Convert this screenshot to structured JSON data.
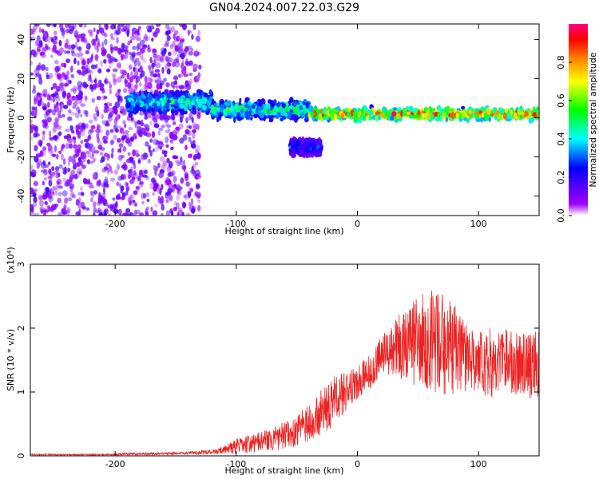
{
  "title": "GN04.2024.007.22.03.G29",
  "chart_data": [
    {
      "type": "heatmap",
      "name": "spectrogram",
      "xlabel": "Height of straight line (km)",
      "ylabel": "Frequency (Hz)",
      "xlim": [
        -270,
        150
      ],
      "ylim": [
        -50,
        48
      ],
      "xticks": [
        -200,
        -100,
        0,
        100
      ],
      "yticks": [
        -40,
        -20,
        0,
        20,
        40
      ],
      "colorbar": {
        "label": "Normalized spectral amplitude",
        "range": [
          0,
          1
        ],
        "ticks": [
          0.0,
          0.2,
          0.4,
          0.6,
          0.8
        ],
        "colors": [
          "#ffffff",
          "#a000ff",
          "#0000ff",
          "#00ffff",
          "#00ff00",
          "#ffff00",
          "#ff8000",
          "#ff0000",
          "#ff0080"
        ]
      },
      "features": [
        {
          "x_range": [
            -270,
            -130
          ],
          "y_range": [
            -50,
            48
          ],
          "amplitude": 0.12
        },
        {
          "x_range": [
            -190,
            -120
          ],
          "center": 8,
          "width": 14,
          "amplitude": 0.45
        },
        {
          "x_range": [
            -120,
            -40
          ],
          "center": 4,
          "width": 12,
          "amplitude": 0.5
        },
        {
          "x_range": [
            -40,
            150
          ],
          "center": 2,
          "width": 8,
          "amplitude": 0.85
        },
        {
          "x_range": [
            -55,
            -30
          ],
          "center": -15,
          "width": 10,
          "amplitude": 0.3
        }
      ]
    },
    {
      "type": "line",
      "name": "snr",
      "xlabel": "Height of straight line (km)",
      "ylabel": "SNR (10 * v/v)",
      "scale_label": "(x10⁴)",
      "xlim": [
        -270,
        150
      ],
      "ylim": [
        0,
        3
      ],
      "xticks": [
        -200,
        -100,
        0,
        100
      ],
      "yticks": [
        0,
        1,
        2,
        3
      ],
      "color": "#ee2222",
      "x": [
        -270,
        -250,
        -230,
        -210,
        -190,
        -170,
        -150,
        -130,
        -120,
        -110,
        -100,
        -90,
        -80,
        -70,
        -60,
        -50,
        -40,
        -30,
        -20,
        -10,
        0,
        10,
        20,
        30,
        40,
        50,
        60,
        70,
        80,
        90,
        100,
        110,
        120,
        130,
        140,
        150
      ],
      "y": [
        0.02,
        0.02,
        0.02,
        0.02,
        0.03,
        0.03,
        0.04,
        0.05,
        0.06,
        0.09,
        0.15,
        0.18,
        0.22,
        0.26,
        0.32,
        0.4,
        0.52,
        0.68,
        0.85,
        1.0,
        1.15,
        1.35,
        1.55,
        1.7,
        1.75,
        1.78,
        1.8,
        1.75,
        1.7,
        1.55,
        1.45,
        1.45,
        1.5,
        1.45,
        1.4,
        1.45
      ],
      "spread": [
        0.01,
        0.01,
        0.01,
        0.01,
        0.02,
        0.02,
        0.02,
        0.03,
        0.04,
        0.06,
        0.12,
        0.14,
        0.16,
        0.18,
        0.22,
        0.26,
        0.3,
        0.35,
        0.4,
        0.32,
        0.25,
        0.3,
        0.35,
        0.42,
        0.6,
        0.75,
        0.8,
        0.8,
        0.75,
        0.55,
        0.5,
        0.55,
        0.5,
        0.5,
        0.5,
        0.55
      ]
    }
  ]
}
